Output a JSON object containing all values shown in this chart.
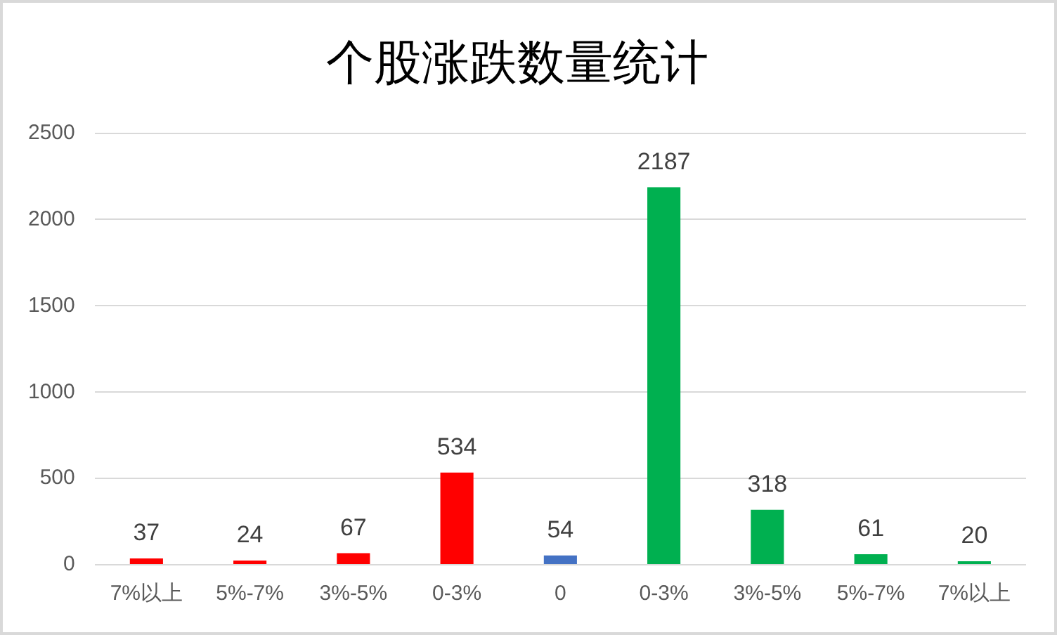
{
  "chart_data": {
    "type": "bar",
    "title": "个股涨跌数量统计",
    "categories": [
      "7%以上",
      "5%-7%",
      "3%-5%",
      "0-3%",
      "0",
      "0-3%",
      "3%-5%",
      "5%-7%",
      "7%以上"
    ],
    "values": [
      37,
      24,
      67,
      534,
      54,
      2187,
      318,
      61,
      20
    ],
    "colors": [
      "#ff0000",
      "#ff0000",
      "#ff0000",
      "#ff0000",
      "#4472c4",
      "#00b050",
      "#00b050",
      "#00b050",
      "#00b050"
    ],
    "ylim": [
      0,
      2500
    ],
    "yticks": [
      0,
      500,
      1000,
      1500,
      2000,
      2500
    ],
    "grid": "y",
    "data_labels": true
  }
}
